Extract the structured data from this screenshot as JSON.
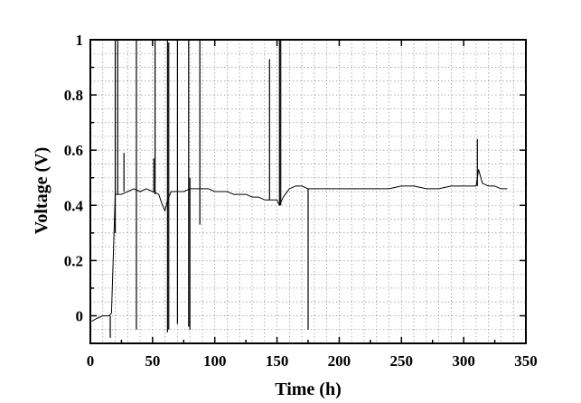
{
  "chart_data": {
    "type": "line",
    "title": "",
    "xlabel": "Time (h)",
    "ylabel": "Voltage (V)",
    "xlim": [
      0,
      350
    ],
    "ylim": [
      -0.1,
      1.0
    ],
    "xticks": [
      0,
      50,
      100,
      150,
      200,
      250,
      300,
      350
    ],
    "yticks": [
      0,
      0.2,
      0.4,
      0.6,
      0.8,
      1.0
    ],
    "xtick_labels": [
      "0",
      "50",
      "100",
      "150",
      "200",
      "250",
      "300",
      "350"
    ],
    "ytick_labels": [
      "0",
      "0.2",
      "0.4",
      "0.6",
      "0.8",
      "1"
    ],
    "grid": true,
    "series": [
      {
        "color": "#000000",
        "x": [
          1,
          5,
          10,
          15,
          17,
          19,
          20,
          25,
          30,
          35,
          40,
          45,
          50,
          55,
          58,
          60,
          62,
          65,
          70,
          75,
          80,
          85,
          90,
          95,
          100,
          105,
          110,
          115,
          120,
          125,
          130,
          135,
          140,
          145,
          150,
          152,
          155,
          160,
          165,
          170,
          175,
          180,
          190,
          200,
          210,
          220,
          230,
          240,
          250,
          260,
          270,
          280,
          290,
          300,
          305,
          310,
          312,
          315,
          320,
          325,
          330,
          335
        ],
        "y": [
          -0.02,
          -0.01,
          0.0,
          0.0,
          0.01,
          0.3,
          0.44,
          0.44,
          0.45,
          0.46,
          0.45,
          0.46,
          0.45,
          0.44,
          0.4,
          0.38,
          0.42,
          0.45,
          0.45,
          0.45,
          0.46,
          0.46,
          0.46,
          0.46,
          0.45,
          0.45,
          0.45,
          0.44,
          0.44,
          0.44,
          0.43,
          0.43,
          0.42,
          0.42,
          0.42,
          0.4,
          0.43,
          0.46,
          0.47,
          0.47,
          0.46,
          0.46,
          0.46,
          0.46,
          0.46,
          0.46,
          0.46,
          0.46,
          0.47,
          0.47,
          0.46,
          0.46,
          0.47,
          0.47,
          0.47,
          0.47,
          0.53,
          0.48,
          0.47,
          0.47,
          0.46,
          0.46
        ]
      }
    ],
    "spikes": [
      {
        "x": 16,
        "low": -0.08,
        "high": 0.0
      },
      {
        "x": 20,
        "low": 0.3,
        "high": 1.0
      },
      {
        "x": 22,
        "low": 0.44,
        "high": 1.0
      },
      {
        "x": 27,
        "low": 0.45,
        "high": 0.59
      },
      {
        "x": 37,
        "low": -0.05,
        "high": 1.0
      },
      {
        "x": 51,
        "low": 0.45,
        "high": 0.57
      },
      {
        "x": 52,
        "low": 0.44,
        "high": 1.0
      },
      {
        "x": 62,
        "low": -0.06,
        "high": 1.0
      },
      {
        "x": 63,
        "low": -0.05,
        "high": 0.99
      },
      {
        "x": 70,
        "low": -0.03,
        "high": 1.0
      },
      {
        "x": 79,
        "low": -0.04,
        "high": 1.0
      },
      {
        "x": 80,
        "low": -0.05,
        "high": 0.5
      },
      {
        "x": 88,
        "low": 0.33,
        "high": 1.0
      },
      {
        "x": 144,
        "low": 0.42,
        "high": 0.93
      },
      {
        "x": 152,
        "low": 0.4,
        "high": 1.0
      },
      {
        "x": 153,
        "low": 0.4,
        "high": 1.0
      },
      {
        "x": 175,
        "low": -0.05,
        "high": 0.46
      },
      {
        "x": 311,
        "low": 0.47,
        "high": 0.64
      }
    ]
  }
}
